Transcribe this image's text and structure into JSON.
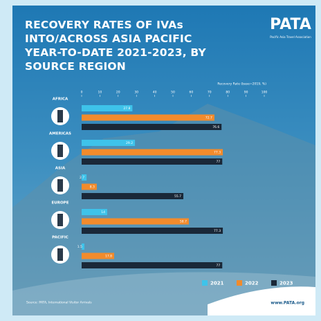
{
  "chart_data": {
    "type": "barh",
    "title": "RECOVERY RATES OF IVAs INTO/ACROSS ASIA PACIFIC YEAR-TO-DATE 2021-2023, BY SOURCE REGION",
    "logo": "PATA",
    "logo_subtitle": "Pacific Asia Travel Association",
    "x_label": "Recovery Rate (base=2019, %)",
    "categories": [
      "AFRICA",
      "AMERICAS",
      "ASIA",
      "EUROPE",
      "PACIFIC"
    ],
    "series": [
      {
        "name": "2021",
        "color": "#3ec3ea",
        "values": [
          27.8,
          29.2,
          2.7,
          14.0,
          1.5
        ]
      },
      {
        "name": "2022",
        "color": "#f28b2c",
        "values": [
          72.7,
          77.3,
          8.3,
          58.7,
          17.8
        ]
      },
      {
        "name": "2023",
        "color": "#1a2838",
        "values": [
          76.6,
          77.0,
          55.7,
          77.3,
          77.0
        ]
      }
    ],
    "xlim": [
      0,
      100
    ],
    "xticks": [
      0,
      10,
      20,
      30,
      40,
      50,
      60,
      70,
      80,
      90,
      100
    ],
    "source": "Source: PATA, International Visitor Arrivals",
    "website": "www.PATA.org"
  }
}
